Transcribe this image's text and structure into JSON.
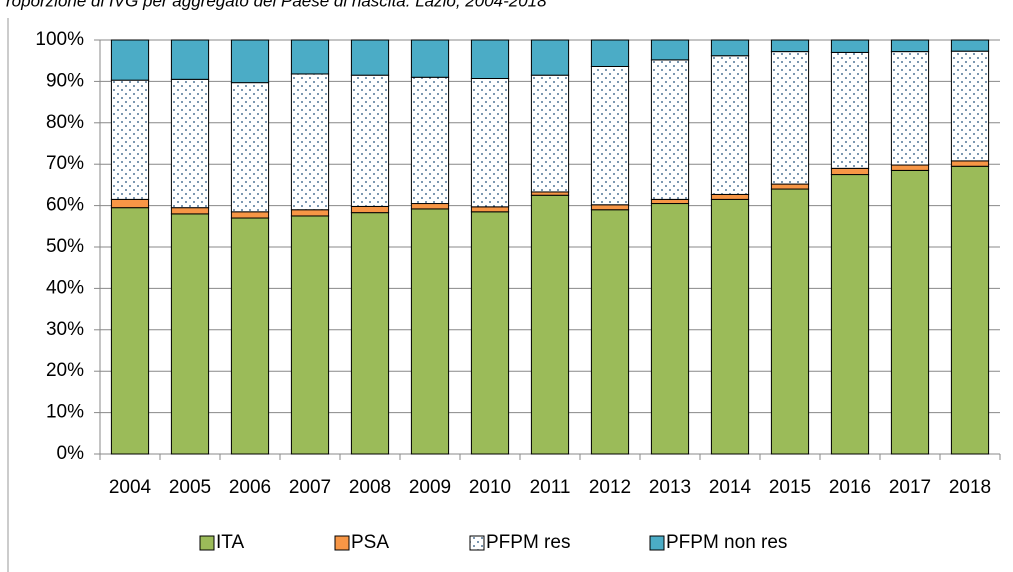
{
  "chart_data": {
    "type": "stacked_bar",
    "title": "roporzione di IVG per aggregato del Paese di nascita. Lazio, 2004-2018",
    "categories": [
      "2004",
      "2005",
      "2006",
      "2007",
      "2008",
      "2009",
      "2010",
      "2011",
      "2012",
      "2013",
      "2014",
      "2015",
      "2016",
      "2017",
      "2018"
    ],
    "series": [
      {
        "name": "ITA",
        "color": "#9bbb59",
        "values": [
          59.5,
          58,
          57,
          57.5,
          58.3,
          59.2,
          58.5,
          62.5,
          59,
          60.5,
          61.5,
          64,
          67.5,
          68.5,
          69.5
        ]
      },
      {
        "name": "PSA",
        "color": "#f79646",
        "values": [
          2,
          1.5,
          1.5,
          1.5,
          1.5,
          1.3,
          1.2,
          0.8,
          1.2,
          1,
          1.2,
          1.2,
          1.5,
          1.3,
          1.3
        ]
      },
      {
        "name": "PFPM res",
        "color": "#ffffff",
        "pattern": "dots",
        "values": [
          28.8,
          31,
          31.2,
          32.8,
          31.7,
          30.5,
          31,
          28.2,
          33.4,
          33.7,
          33.5,
          32,
          28,
          27.4,
          26.5
        ]
      },
      {
        "name": "PFPM non res",
        "color": "#4bacc6",
        "values": [
          9.7,
          9.5,
          10.3,
          8.2,
          8.5,
          9,
          9.3,
          8.5,
          6.4,
          4.8,
          3.8,
          2.8,
          3,
          2.8,
          2.7
        ]
      }
    ],
    "ylim": [
      0,
      100
    ],
    "yticks": [
      {
        "value": 0,
        "label": "0%"
      },
      {
        "value": 10,
        "label": "10%"
      },
      {
        "value": 20,
        "label": "20%"
      },
      {
        "value": 30,
        "label": "30%"
      },
      {
        "value": 40,
        "label": "40%"
      },
      {
        "value": 50,
        "label": "50%"
      },
      {
        "value": 60,
        "label": "60%"
      },
      {
        "value": 70,
        "label": "70%"
      },
      {
        "value": 80,
        "label": "80%"
      },
      {
        "value": 90,
        "label": "90%"
      },
      {
        "value": 100,
        "label": "100%"
      }
    ],
    "grid": true,
    "legend": "bottom"
  }
}
